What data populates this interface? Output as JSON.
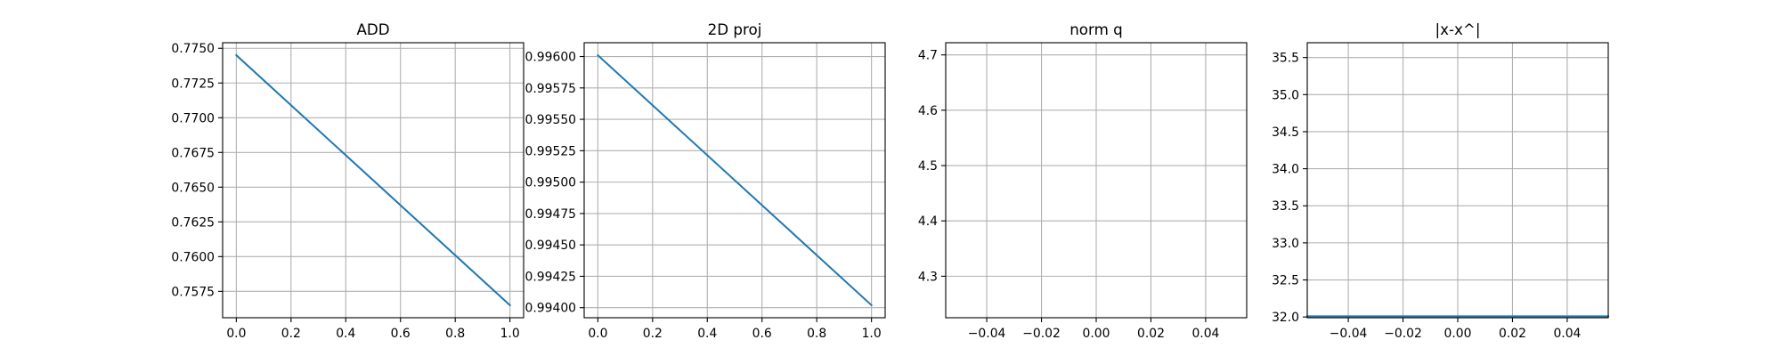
{
  "colors": {
    "series": "#1f77b4",
    "grid": "#b0b0b0",
    "axes": "#000000",
    "background": "#ffffff"
  },
  "chart_data": [
    {
      "type": "line",
      "title": "ADD",
      "xlabel": "",
      "ylabel": "",
      "grid": true,
      "xlim": [
        -0.05,
        1.05
      ],
      "ylim": [
        0.7556,
        0.7754
      ],
      "xticks": [
        0.0,
        0.2,
        0.4,
        0.6,
        0.8,
        1.0
      ],
      "xtick_labels": [
        "0.0",
        "0.2",
        "0.4",
        "0.6",
        "0.8",
        "1.0"
      ],
      "yticks": [
        0.7575,
        0.76,
        0.7625,
        0.765,
        0.7675,
        0.77,
        0.7725,
        0.775
      ],
      "ytick_labels": [
        "0.7575",
        "0.7600",
        "0.7625",
        "0.7650",
        "0.7675",
        "0.7700",
        "0.7725",
        "0.7750"
      ],
      "series": [
        {
          "x": [
            0,
            1
          ],
          "y": [
            0.7745,
            0.7565
          ]
        }
      ]
    },
    {
      "type": "line",
      "title": "2D proj",
      "xlabel": "",
      "ylabel": "",
      "grid": true,
      "xlim": [
        -0.05,
        1.05
      ],
      "ylim": [
        0.99392,
        0.99611
      ],
      "xticks": [
        0.0,
        0.2,
        0.4,
        0.6,
        0.8,
        1.0
      ],
      "xtick_labels": [
        "0.0",
        "0.2",
        "0.4",
        "0.6",
        "0.8",
        "1.0"
      ],
      "yticks": [
        0.994,
        0.99425,
        0.9945,
        0.99475,
        0.995,
        0.99525,
        0.9955,
        0.99575,
        0.996
      ],
      "ytick_labels": [
        "0.99400",
        "0.99425",
        "0.99450",
        "0.99475",
        "0.99500",
        "0.99525",
        "0.99550",
        "0.99575",
        "0.99600"
      ],
      "series": [
        {
          "x": [
            0,
            1
          ],
          "y": [
            0.99601,
            0.99402
          ]
        }
      ]
    },
    {
      "type": "line",
      "title": "norm q",
      "xlabel": "",
      "ylabel": "",
      "grid": true,
      "xlim": [
        -0.055,
        0.055
      ],
      "ylim": [
        4.225,
        4.722
      ],
      "xticks": [
        -0.04,
        -0.02,
        0.0,
        0.02,
        0.04
      ],
      "xtick_labels": [
        "−0.04",
        "−0.02",
        "0.00",
        "0.02",
        "0.04"
      ],
      "yticks": [
        4.3,
        4.4,
        4.5,
        4.6,
        4.7
      ],
      "ytick_labels": [
        "4.3",
        "4.4",
        "4.5",
        "4.6",
        "4.7"
      ],
      "series": []
    },
    {
      "type": "line",
      "title": "|x-x^|",
      "xlabel": "",
      "ylabel": "",
      "grid": true,
      "xlim": [
        -0.055,
        0.055
      ],
      "ylim": [
        31.99,
        35.7
      ],
      "xticks": [
        -0.04,
        -0.02,
        0.0,
        0.02,
        0.04
      ],
      "xtick_labels": [
        "−0.04",
        "−0.02",
        "0.00",
        "0.02",
        "0.04"
      ],
      "yticks": [
        32.0,
        32.5,
        33.0,
        33.5,
        34.0,
        34.5,
        35.0,
        35.5
      ],
      "ytick_labels": [
        "32.0",
        "32.5",
        "33.0",
        "33.5",
        "34.0",
        "34.5",
        "35.0",
        "35.5"
      ],
      "series": [
        {
          "x": [
            -0.055,
            0.055
          ],
          "y": [
            32.01,
            32.01
          ]
        }
      ]
    }
  ]
}
